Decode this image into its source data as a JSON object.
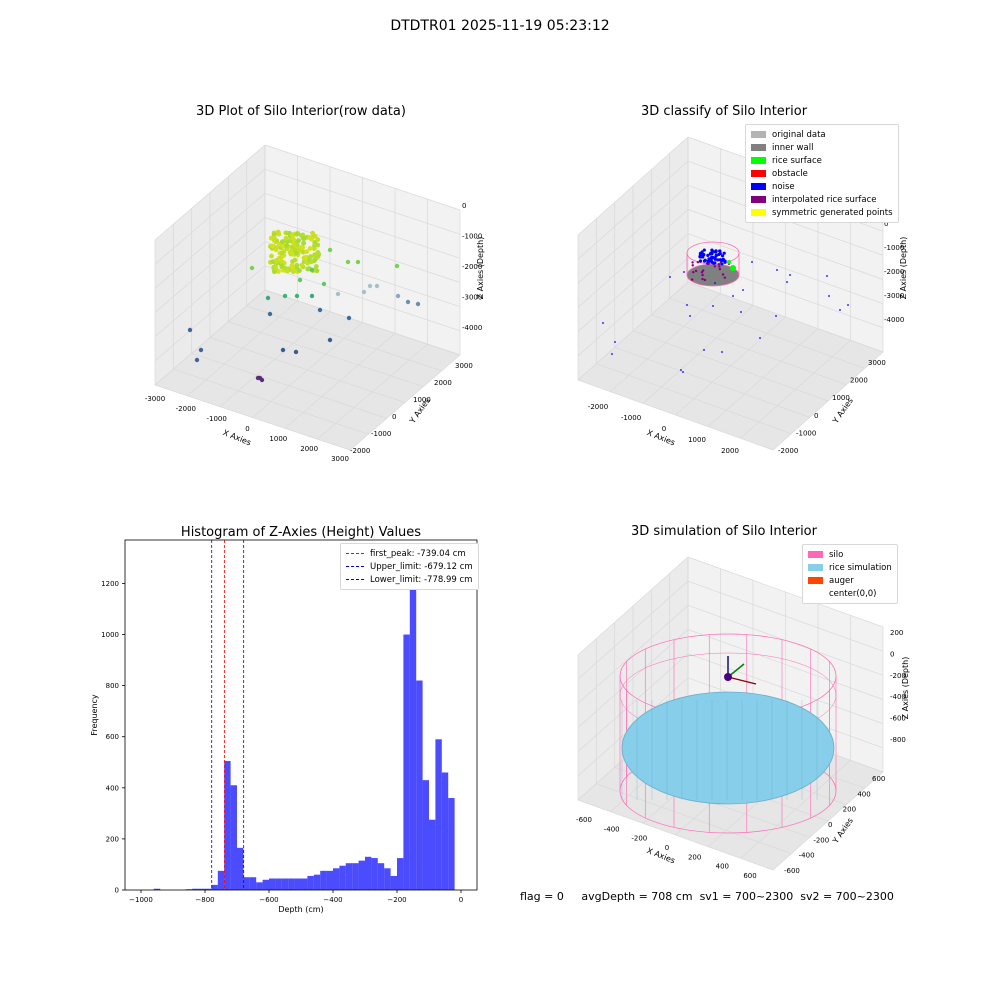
{
  "suptitle": "DTDTR01 2025-11-19 05:23:12",
  "panels": {
    "raw": {
      "title": "3D Plot of Silo Interior(row data)",
      "x_ticks": [
        "-3000",
        "-2000",
        "-1000",
        "0",
        "1000",
        "2000",
        "3000"
      ],
      "y_ticks": [
        "-2000",
        "-1000",
        "0",
        "1000",
        "2000",
        "3000"
      ],
      "z_ticks": [
        "0",
        "-1000",
        "-2000",
        "-3000",
        "-4000"
      ],
      "xlabel": "X Axies",
      "ylabel": "Y Axies",
      "zlabel": "Z Axies (Depth)"
    },
    "classify": {
      "title": "3D classify of Silo Interior",
      "x_ticks": [
        "-2000",
        "-1000",
        "0",
        "1000",
        "2000"
      ],
      "y_ticks": [
        "-2000",
        "-1000",
        "0",
        "1000",
        "2000",
        "3000"
      ],
      "z_ticks": [
        "0",
        "-1000",
        "-2000",
        "-3000",
        "-4000"
      ],
      "xlabel": "X Axies",
      "ylabel": "Y Axies",
      "zlabel": "Z Axies (Depth)",
      "legend": [
        {
          "label": "original data",
          "color": "#b3b3b3"
        },
        {
          "label": "inner wall",
          "color": "#808080"
        },
        {
          "label": "rice surface",
          "color": "#00ff00"
        },
        {
          "label": "obstacle",
          "color": "#ff0000"
        },
        {
          "label": "noise",
          "color": "#0000ff"
        },
        {
          "label": "interpolated rice surface",
          "color": "#800080"
        },
        {
          "label": "symmetric generated points",
          "color": "#ffff00"
        }
      ]
    },
    "simulation": {
      "title": "3D simulation of Silo Interior",
      "x_ticks": [
        "-600",
        "-400",
        "-200",
        "0",
        "200",
        "400",
        "600"
      ],
      "y_ticks": [
        "-600",
        "-400",
        "-200",
        "0",
        "200",
        "400",
        "600"
      ],
      "z_ticks": [
        "200",
        "0",
        "-200",
        "-400",
        "-600",
        "-800"
      ],
      "xlabel": "X Axies",
      "ylabel": "Y Axies",
      "zlabel": "Z Axies (Depth)",
      "legend": [
        {
          "label": "silo",
          "color": "#ff69b4"
        },
        {
          "label": "rice simulation",
          "color": "#87ceeb"
        },
        {
          "label": "auger",
          "color": "#ff4500"
        },
        {
          "label": "center(0,0)",
          "color": ""
        }
      ]
    }
  },
  "footer": {
    "flag": "flag = 0",
    "avg": "avgDepth = 708 cm",
    "sv1": "sv1 = 700~2300",
    "sv2": "sv2 = 700~2300"
  },
  "chart_data": {
    "type": "bar",
    "title": "Histogram of Z-Axies (Height) Values",
    "xlabel": "Depth (cm)",
    "ylabel": "Frequency",
    "xlim": [
      -1050,
      50
    ],
    "ylim": [
      0,
      1370
    ],
    "x_ticks": [
      -1000,
      -800,
      -600,
      -400,
      -200,
      0
    ],
    "y_ticks": [
      0,
      200,
      400,
      600,
      800,
      1000,
      1200
    ],
    "bar_color": "#0000ff",
    "bins": [
      {
        "x0": -960,
        "x1": -940,
        "count": 5
      },
      {
        "x0": -860,
        "x1": -840,
        "count": 3
      },
      {
        "x0": -840,
        "x1": -820,
        "count": 5
      },
      {
        "x0": -820,
        "x1": -800,
        "count": 5
      },
      {
        "x0": -800,
        "x1": -780,
        "count": 5
      },
      {
        "x0": -780,
        "x1": -760,
        "count": 20
      },
      {
        "x0": -760,
        "x1": -740,
        "count": 75
      },
      {
        "x0": -740,
        "x1": -720,
        "count": 505
      },
      {
        "x0": -720,
        "x1": -700,
        "count": 410
      },
      {
        "x0": -700,
        "x1": -680,
        "count": 165
      },
      {
        "x0": -680,
        "x1": -660,
        "count": 50
      },
      {
        "x0": -660,
        "x1": -640,
        "count": 50
      },
      {
        "x0": -640,
        "x1": -620,
        "count": 30
      },
      {
        "x0": -620,
        "x1": -600,
        "count": 40
      },
      {
        "x0": -600,
        "x1": -580,
        "count": 45
      },
      {
        "x0": -580,
        "x1": -560,
        "count": 45
      },
      {
        "x0": -560,
        "x1": -540,
        "count": 45
      },
      {
        "x0": -540,
        "x1": -520,
        "count": 45
      },
      {
        "x0": -520,
        "x1": -500,
        "count": 45
      },
      {
        "x0": -500,
        "x1": -480,
        "count": 45
      },
      {
        "x0": -480,
        "x1": -460,
        "count": 55
      },
      {
        "x0": -460,
        "x1": -440,
        "count": 60
      },
      {
        "x0": -440,
        "x1": -420,
        "count": 75
      },
      {
        "x0": -420,
        "x1": -400,
        "count": 75
      },
      {
        "x0": -400,
        "x1": -380,
        "count": 85
      },
      {
        "x0": -380,
        "x1": -360,
        "count": 95
      },
      {
        "x0": -360,
        "x1": -340,
        "count": 105
      },
      {
        "x0": -340,
        "x1": -320,
        "count": 105
      },
      {
        "x0": -320,
        "x1": -300,
        "count": 115
      },
      {
        "x0": -300,
        "x1": -280,
        "count": 130
      },
      {
        "x0": -280,
        "x1": -260,
        "count": 125
      },
      {
        "x0": -260,
        "x1": -240,
        "count": 105
      },
      {
        "x0": -240,
        "x1": -220,
        "count": 85
      },
      {
        "x0": -220,
        "x1": -200,
        "count": 55
      },
      {
        "x0": -200,
        "x1": -180,
        "count": 125
      },
      {
        "x0": -180,
        "x1": -160,
        "count": 1000
      },
      {
        "x0": -160,
        "x1": -140,
        "count": 1300
      },
      {
        "x0": -140,
        "x1": -120,
        "count": 820
      },
      {
        "x0": -120,
        "x1": -100,
        "count": 430
      },
      {
        "x0": -100,
        "x1": -80,
        "count": 275
      },
      {
        "x0": -80,
        "x1": -60,
        "count": 590
      },
      {
        "x0": -60,
        "x1": -40,
        "count": 460
      },
      {
        "x0": -40,
        "x1": -20,
        "count": 360
      }
    ],
    "vlines": [
      {
        "label": "first_peak: -739.04 cm",
        "x": -739.04,
        "color": "#ff0000"
      },
      {
        "label": "Upper_limit: -679.12 cm",
        "x": -679.12,
        "color": "#0000cc"
      },
      {
        "label": "Lower_limit: -778.99 cm",
        "x": -778.99,
        "color": "#0000cc"
      }
    ]
  }
}
